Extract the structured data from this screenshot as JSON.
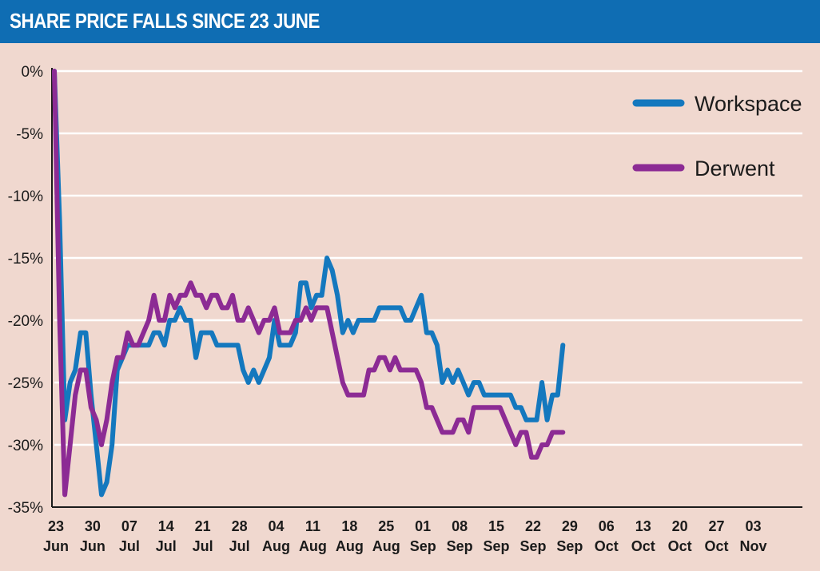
{
  "title": "SHARE PRICE FALLS SINCE 23 JUNE",
  "chart_data": {
    "type": "line",
    "title": "SHARE PRICE FALLS SINCE 23 JUNE",
    "xlabel": "",
    "ylabel": "",
    "ylim": [
      -35,
      0
    ],
    "yticks": [
      "0%",
      "-5%",
      "-10%",
      "-15%",
      "-20%",
      "-25%",
      "-30%",
      "-35%"
    ],
    "ytick_values": [
      0,
      -5,
      -10,
      -15,
      -20,
      -25,
      -30,
      -35
    ],
    "xticks": [
      {
        "day": "23",
        "month": "Jun"
      },
      {
        "day": "30",
        "month": "Jun"
      },
      {
        "day": "07",
        "month": "Jul"
      },
      {
        "day": "14",
        "month": "Jul"
      },
      {
        "day": "21",
        "month": "Jul"
      },
      {
        "day": "28",
        "month": "Jul"
      },
      {
        "day": "04",
        "month": "Aug"
      },
      {
        "day": "11",
        "month": "Aug"
      },
      {
        "day": "18",
        "month": "Aug"
      },
      {
        "day": "25",
        "month": "Aug"
      },
      {
        "day": "01",
        "month": "Sep"
      },
      {
        "day": "08",
        "month": "Sep"
      },
      {
        "day": "15",
        "month": "Sep"
      },
      {
        "day": "22",
        "month": "Sep"
      },
      {
        "day": "29",
        "month": "Sep"
      },
      {
        "day": "06",
        "month": "Oct"
      },
      {
        "day": "13",
        "month": "Oct"
      },
      {
        "day": "20",
        "month": "Oct"
      },
      {
        "day": "27",
        "month": "Oct"
      },
      {
        "day": "03",
        "month": "Nov"
      }
    ],
    "grid": "horizontal",
    "legend_position": "top-right",
    "series": [
      {
        "name": "Workspace",
        "color": "#1478be",
        "values": [
          0,
          -12,
          -28,
          -25,
          -24,
          -21,
          -21,
          -26,
          -30,
          -34,
          -33,
          -30,
          -24,
          -23,
          -22,
          -22,
          -22,
          -22,
          -22,
          -21,
          -21,
          -22,
          -20,
          -20,
          -19,
          -20,
          -20,
          -23,
          -21,
          -21,
          -21,
          -22,
          -22,
          -22,
          -22,
          -22,
          -24,
          -25,
          -24,
          -25,
          -24,
          -23,
          -20,
          -22,
          -22,
          -22,
          -21,
          -17,
          -17,
          -19,
          -18,
          -18,
          -15,
          -16,
          -18,
          -21,
          -20,
          -21,
          -20,
          -20,
          -20,
          -20,
          -19,
          -19,
          -19,
          -19,
          -19,
          -20,
          -20,
          -19,
          -18,
          -21,
          -21,
          -22,
          -25,
          -24,
          -25,
          -24,
          -25,
          -26,
          -25,
          -25,
          -26,
          -26,
          -26,
          -26,
          -26,
          -26,
          -27,
          -27,
          -28,
          -28,
          -28,
          -25,
          -28,
          -26,
          -26,
          -22
        ]
      },
      {
        "name": "Derwent",
        "color": "#8c2b94",
        "values": [
          0,
          -20,
          -34,
          -30,
          -26,
          -24,
          -24,
          -27,
          -28,
          -30,
          -28,
          -25,
          -23,
          -23,
          -21,
          -22,
          -22,
          -21,
          -20,
          -18,
          -20,
          -20,
          -18,
          -19,
          -18,
          -18,
          -17,
          -18,
          -18,
          -19,
          -18,
          -18,
          -19,
          -19,
          -18,
          -20,
          -20,
          -19,
          -20,
          -21,
          -20,
          -20,
          -19,
          -21,
          -21,
          -21,
          -20,
          -20,
          -19,
          -20,
          -19,
          -19,
          -19,
          -21,
          -23,
          -25,
          -26,
          -26,
          -26,
          -26,
          -24,
          -24,
          -23,
          -23,
          -24,
          -23,
          -24,
          -24,
          -24,
          -24,
          -25,
          -27,
          -27,
          -28,
          -29,
          -29,
          -29,
          -28,
          -28,
          -29,
          -27,
          -27,
          -27,
          -27,
          -27,
          -27,
          -28,
          -29,
          -30,
          -29,
          -29,
          -31,
          -31,
          -30,
          -30,
          -29,
          -29,
          -29
        ]
      }
    ]
  }
}
